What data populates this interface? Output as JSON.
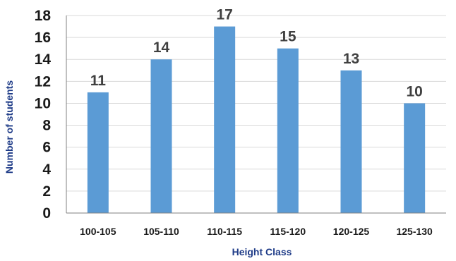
{
  "chart_data": {
    "type": "bar",
    "categories": [
      "100-105",
      "105-110",
      "110-115",
      "115-120",
      "120-125",
      "125-130"
    ],
    "values": [
      11,
      14,
      17,
      15,
      13,
      10
    ],
    "xlabel": "Height Class",
    "ylabel": "Number of students",
    "ylim": [
      0,
      18
    ],
    "yticks": [
      0,
      2,
      4,
      6,
      8,
      10,
      12,
      14,
      16,
      18
    ],
    "grid": true,
    "legend": "none",
    "bar_color": "#5b9bd5",
    "label_color": "#404040",
    "axis_title_color": "#1f3c88"
  }
}
